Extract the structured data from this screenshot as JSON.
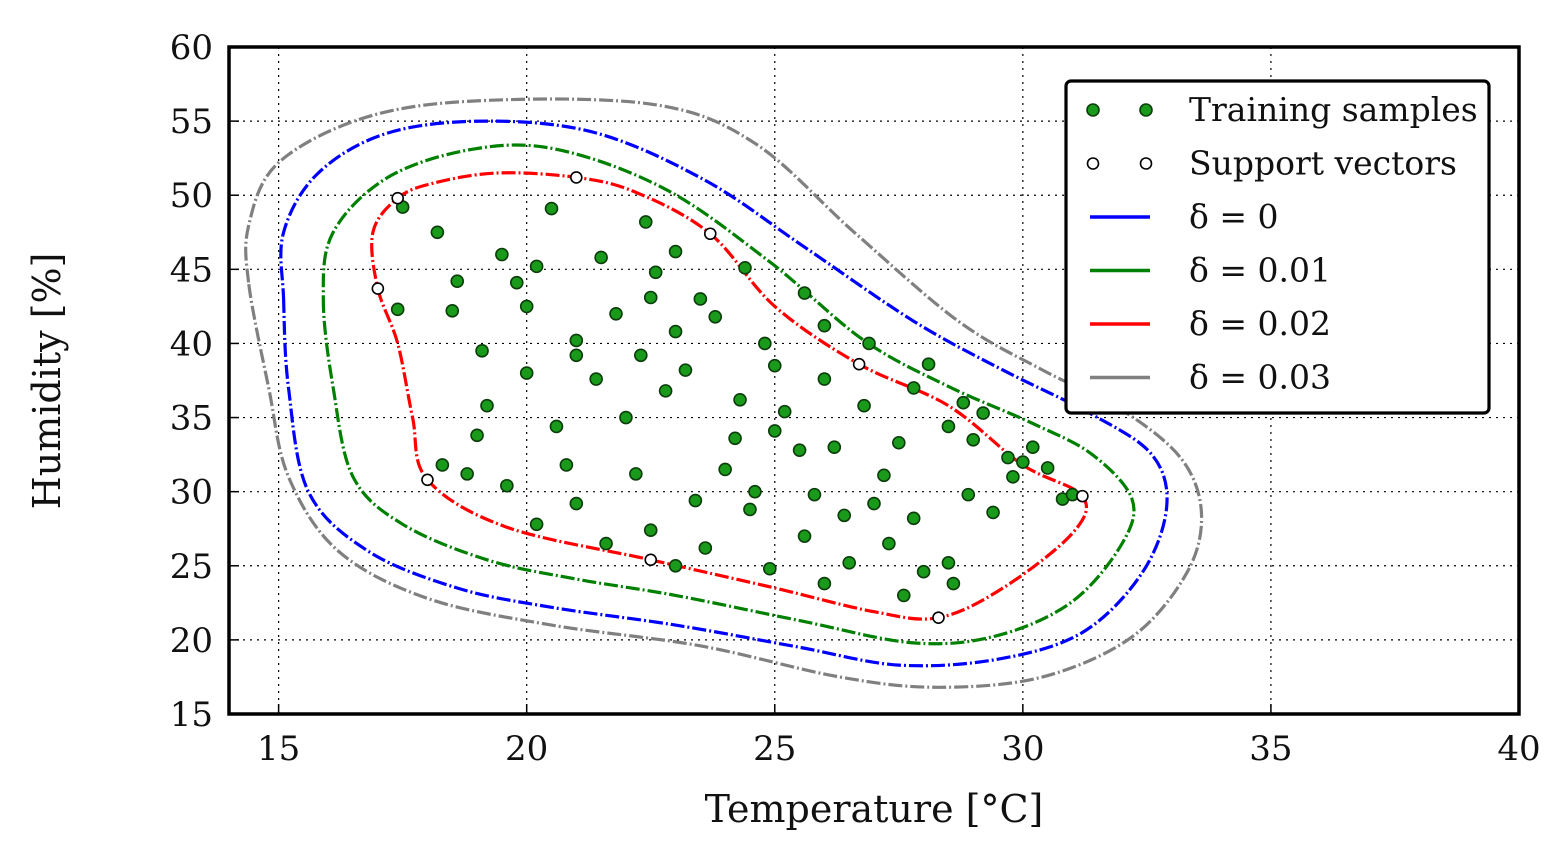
{
  "chart_data": {
    "type": "scatter",
    "xlabel": "Temperature [°C]",
    "ylabel": "Humidity [%]",
    "xlim": [
      14,
      40
    ],
    "ylim": [
      15,
      60
    ],
    "xticks": [
      "15",
      "20",
      "25",
      "30",
      "35",
      "40"
    ],
    "yticks": [
      "15",
      "20",
      "25",
      "30",
      "35",
      "40",
      "45",
      "50",
      "55",
      "60"
    ],
    "grid": true,
    "legend_position": "top-right",
    "legend": [
      {
        "label": "Training samples",
        "kind": "marker",
        "color": "#1a9a1a"
      },
      {
        "label": "Support vectors",
        "kind": "marker",
        "color": "#ffffff"
      },
      {
        "label": "δ = 0",
        "kind": "line",
        "color": "#0000ff"
      },
      {
        "label": "δ = 0.01",
        "kind": "line",
        "color": "#008000"
      },
      {
        "label": "δ = 0.02",
        "kind": "line",
        "color": "#ff0000"
      },
      {
        "label": "δ = 0.03",
        "kind": "line",
        "color": "#808080"
      }
    ],
    "support_vectors": [
      [
        17.4,
        49.8
      ],
      [
        21.0,
        51.2
      ],
      [
        23.7,
        47.4
      ],
      [
        17.0,
        43.7
      ],
      [
        26.7,
        38.6
      ],
      [
        18.0,
        30.8
      ],
      [
        22.5,
        25.4
      ],
      [
        31.2,
        29.7
      ],
      [
        28.3,
        21.5
      ]
    ],
    "training_samples": [
      [
        17.5,
        49.2
      ],
      [
        18.6,
        44.2
      ],
      [
        19.8,
        44.1
      ],
      [
        21.0,
        39.2
      ],
      [
        22.3,
        39.2
      ],
      [
        25.0,
        34.1
      ],
      [
        27.2,
        31.1
      ],
      [
        28.1,
        38.6
      ],
      [
        29.7,
        32.3
      ],
      [
        30.8,
        29.5
      ],
      [
        18.5,
        42.2
      ],
      [
        20.0,
        42.5
      ],
      [
        22.5,
        43.1
      ],
      [
        23.5,
        43.0
      ],
      [
        25.2,
        35.4
      ],
      [
        26.8,
        35.8
      ],
      [
        29.2,
        35.3
      ],
      [
        30.5,
        31.6
      ],
      [
        31.0,
        29.8
      ],
      [
        18.8,
        31.2
      ],
      [
        20.8,
        31.8
      ],
      [
        23.0,
        25.0
      ],
      [
        24.5,
        28.8
      ],
      [
        26.5,
        25.2
      ],
      [
        28.6,
        23.8
      ],
      [
        20.5,
        49.1
      ],
      [
        22.6,
        44.8
      ],
      [
        25.0,
        38.5
      ],
      [
        27.5,
        33.3
      ],
      [
        30.0,
        32.0
      ],
      [
        17.4,
        42.3
      ],
      [
        19.1,
        39.5
      ],
      [
        21.0,
        40.2
      ],
      [
        23.2,
        38.2
      ],
      [
        25.8,
        29.8
      ],
      [
        27.3,
        26.5
      ],
      [
        28.5,
        25.2
      ],
      [
        19.0,
        33.8
      ],
      [
        21.0,
        29.2
      ],
      [
        22.5,
        27.4
      ],
      [
        24.0,
        31.5
      ],
      [
        25.5,
        32.8
      ],
      [
        27.0,
        29.2
      ],
      [
        21.5,
        45.8
      ],
      [
        23.8,
        41.8
      ],
      [
        26.0,
        37.6
      ],
      [
        28.5,
        34.4
      ],
      [
        22.0,
        35.0
      ],
      [
        24.3,
        36.2
      ],
      [
        26.2,
        33.0
      ],
      [
        18.2,
        47.5
      ],
      [
        19.5,
        46.0
      ],
      [
        20.2,
        45.2
      ],
      [
        21.8,
        42.0
      ],
      [
        23.0,
        40.8
      ],
      [
        24.8,
        40.0
      ],
      [
        26.0,
        41.2
      ],
      [
        27.8,
        37.0
      ],
      [
        29.0,
        33.5
      ],
      [
        29.8,
        31.0
      ],
      [
        18.3,
        31.8
      ],
      [
        19.6,
        30.4
      ],
      [
        20.2,
        27.8
      ],
      [
        21.6,
        26.5
      ],
      [
        23.6,
        26.2
      ],
      [
        24.9,
        24.8
      ],
      [
        26.0,
        23.8
      ],
      [
        27.6,
        23.0
      ],
      [
        28.0,
        24.6
      ],
      [
        25.6,
        27.0
      ],
      [
        24.2,
        33.6
      ],
      [
        22.8,
        36.8
      ],
      [
        21.4,
        37.6
      ],
      [
        20.0,
        38.0
      ],
      [
        19.2,
        35.8
      ],
      [
        22.4,
        48.2
      ],
      [
        23.0,
        46.2
      ],
      [
        24.4,
        45.1
      ],
      [
        25.6,
        43.4
      ],
      [
        26.9,
        40.0
      ],
      [
        28.8,
        36.0
      ],
      [
        30.2,
        33.0
      ],
      [
        24.6,
        30.0
      ],
      [
        23.4,
        29.4
      ],
      [
        22.2,
        31.2
      ],
      [
        26.4,
        28.4
      ],
      [
        27.8,
        28.2
      ],
      [
        28.9,
        29.8
      ],
      [
        29.4,
        28.6
      ],
      [
        20.6,
        34.4
      ]
    ],
    "decision_boundaries": [
      {
        "name": "δ = 0",
        "points": [
          [
            15.1,
            43
          ],
          [
            15.2,
            37
          ],
          [
            15.6,
            30
          ],
          [
            16.8,
            26
          ],
          [
            18.6,
            23.5
          ],
          [
            20.5,
            22.2
          ],
          [
            23,
            21
          ],
          [
            25.5,
            19.5
          ],
          [
            27.5,
            18.3
          ],
          [
            29.5,
            18.7
          ],
          [
            31.2,
            20.5
          ],
          [
            32.4,
            24.5
          ],
          [
            32.9,
            29
          ],
          [
            32.6,
            32.5
          ],
          [
            31.4,
            35.2
          ],
          [
            29.6,
            38.2
          ],
          [
            27.8,
            41.5
          ],
          [
            25.6,
            46.5
          ],
          [
            23.6,
            51
          ],
          [
            21.4,
            54.2
          ],
          [
            19.2,
            55
          ],
          [
            17.2,
            54.2
          ],
          [
            15.8,
            51.5
          ],
          [
            15.1,
            47.5
          ]
        ]
      },
      {
        "name": "δ = 0.01",
        "points": [
          [
            15.9,
            43
          ],
          [
            16.1,
            37
          ],
          [
            16.5,
            31
          ],
          [
            17.5,
            27.8
          ],
          [
            19.2,
            25.4
          ],
          [
            21,
            24.1
          ],
          [
            23,
            23
          ],
          [
            25.5,
            21.3
          ],
          [
            27.8,
            19.8
          ],
          [
            29.5,
            20.3
          ],
          [
            31,
            22.6
          ],
          [
            32,
            26.5
          ],
          [
            32.2,
            29.5
          ],
          [
            31.4,
            32.5
          ],
          [
            30.2,
            34.6
          ],
          [
            28.5,
            37.1
          ],
          [
            26.8,
            40.2
          ],
          [
            24.9,
            45.5
          ],
          [
            22.8,
            50.4
          ],
          [
            20.6,
            53.1
          ],
          [
            18.9,
            53.1
          ],
          [
            17.2,
            51.2
          ],
          [
            16.1,
            47.5
          ]
        ]
      },
      {
        "name": "δ = 0.02",
        "points": [
          [
            17,
            43.7
          ],
          [
            17.4,
            40
          ],
          [
            17.7,
            35
          ],
          [
            18,
            30.8
          ],
          [
            19.6,
            27.6
          ],
          [
            22.5,
            25.4
          ],
          [
            25,
            23.5
          ],
          [
            27,
            21.9
          ],
          [
            28.3,
            21.5
          ],
          [
            29.6,
            23.5
          ],
          [
            31,
            27.2
          ],
          [
            31.2,
            29.7
          ],
          [
            30,
            31.8
          ],
          [
            28.5,
            35.8
          ],
          [
            26.7,
            38.6
          ],
          [
            25,
            42.5
          ],
          [
            23.7,
            47.4
          ],
          [
            22.2,
            50.2
          ],
          [
            21,
            51.2
          ],
          [
            19.4,
            51.5
          ],
          [
            18.1,
            50.8
          ],
          [
            17.4,
            49.8
          ],
          [
            16.9,
            47.5
          ]
        ]
      },
      {
        "name": "δ = 0.03",
        "points": [
          [
            14.4,
            44
          ],
          [
            14.8,
            37
          ],
          [
            15.2,
            31
          ],
          [
            16.2,
            26
          ],
          [
            18,
            22.8
          ],
          [
            20.5,
            21
          ],
          [
            23.5,
            19.6
          ],
          [
            26.3,
            17.5
          ],
          [
            28.3,
            16.8
          ],
          [
            30.4,
            17.5
          ],
          [
            32.2,
            20.2
          ],
          [
            33.3,
            24.5
          ],
          [
            33.6,
            28.5
          ],
          [
            33.2,
            32.2
          ],
          [
            32,
            35.5
          ],
          [
            30.4,
            38.2
          ],
          [
            28.7,
            41.5
          ],
          [
            26.6,
            47.5
          ],
          [
            24.6,
            53.5
          ],
          [
            22.6,
            56.1
          ],
          [
            19.2,
            56.4
          ],
          [
            16.8,
            55.3
          ],
          [
            15,
            52.2
          ],
          [
            14.4,
            48
          ]
        ]
      }
    ]
  }
}
